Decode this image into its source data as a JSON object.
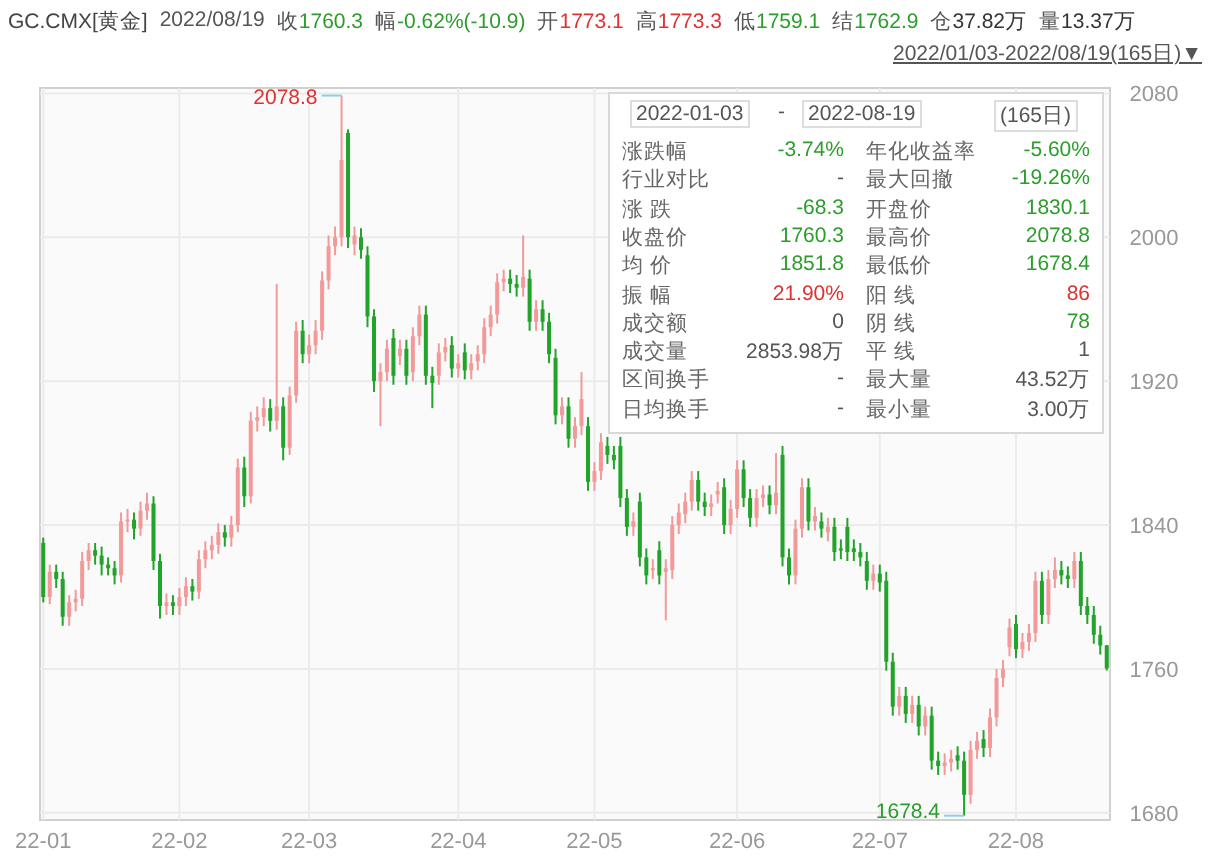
{
  "chart_data": {
    "type": "candlestick",
    "title": "GC.CMX[黄金]",
    "categories": [
      "22-01",
      null,
      null,
      null,
      null,
      null,
      null,
      null,
      null,
      null,
      null,
      null,
      null,
      null,
      null,
      null,
      null,
      null,
      null,
      null,
      null,
      "22-02",
      null,
      null,
      null,
      null,
      null,
      null,
      null,
      null,
      null,
      null,
      null,
      null,
      null,
      null,
      null,
      null,
      null,
      null,
      null,
      "22-03",
      null,
      null,
      null,
      null,
      null,
      null,
      null,
      null,
      null,
      null,
      null,
      null,
      null,
      null,
      null,
      null,
      null,
      null,
      null,
      null,
      null,
      null,
      "22-04",
      null,
      null,
      null,
      null,
      null,
      null,
      null,
      null,
      null,
      null,
      null,
      null,
      null,
      null,
      null,
      null,
      null,
      null,
      null,
      null,
      "22-05",
      null,
      null,
      null,
      null,
      null,
      null,
      null,
      null,
      null,
      null,
      null,
      null,
      null,
      null,
      null,
      null,
      null,
      null,
      null,
      null,
      null,
      "22-06",
      null,
      null,
      null,
      null,
      null,
      null,
      null,
      null,
      null,
      null,
      null,
      null,
      null,
      null,
      null,
      null,
      null,
      null,
      null,
      null,
      null,
      "22-07",
      null,
      null,
      null,
      null,
      null,
      null,
      null,
      null,
      null,
      null,
      null,
      null,
      null,
      null,
      null,
      null,
      null,
      null,
      null,
      null,
      "22-08",
      null,
      null,
      null,
      null,
      null,
      null,
      null,
      null,
      null,
      null,
      null,
      null,
      null,
      null
    ],
    "ohlc": [
      [
        1830.1,
        1833,
        1797,
        1800
      ],
      [
        1800,
        1818,
        1796,
        1814
      ],
      [
        1814,
        1818,
        1805,
        1810
      ],
      [
        1810,
        1814,
        1784,
        1789
      ],
      [
        1789,
        1801,
        1784,
        1797
      ],
      [
        1797,
        1804,
        1792,
        1799
      ],
      [
        1799,
        1825,
        1795,
        1820
      ],
      [
        1820,
        1830,
        1815,
        1826
      ],
      [
        1826,
        1830,
        1818,
        1823
      ],
      [
        1823,
        1828,
        1812,
        1818
      ],
      [
        1818,
        1822,
        1812,
        1816
      ],
      [
        1816,
        1820,
        1807,
        1812
      ],
      [
        1812,
        1847,
        1808,
        1842
      ],
      [
        1842,
        1849,
        1836,
        1843
      ],
      [
        1843,
        1847,
        1832,
        1838
      ],
      [
        1838,
        1853,
        1834,
        1848
      ],
      [
        1848,
        1858,
        1843,
        1852
      ],
      [
        1852,
        1856,
        1815,
        1820
      ],
      [
        1820,
        1824,
        1788,
        1795
      ],
      [
        1795,
        1802,
        1790,
        1797
      ],
      [
        1797,
        1801,
        1790,
        1795
      ],
      [
        1795,
        1805,
        1790,
        1800
      ],
      [
        1800,
        1811,
        1795,
        1806
      ],
      [
        1806,
        1810,
        1798,
        1803
      ],
      [
        1803,
        1826,
        1799,
        1821
      ],
      [
        1821,
        1831,
        1816,
        1826
      ],
      [
        1826,
        1834,
        1821,
        1829
      ],
      [
        1829,
        1841,
        1824,
        1836
      ],
      [
        1836,
        1840,
        1828,
        1833
      ],
      [
        1833,
        1845,
        1828,
        1840
      ],
      [
        1840,
        1877,
        1836,
        1872
      ],
      [
        1872,
        1878,
        1850,
        1856
      ],
      [
        1856,
        1903,
        1852,
        1898
      ],
      [
        1898,
        1906,
        1892,
        1900
      ],
      [
        1900,
        1911,
        1895,
        1905
      ],
      [
        1905,
        1910,
        1892,
        1898
      ],
      [
        1898,
        1974,
        1893,
        1906
      ],
      [
        1906,
        1911,
        1876,
        1883
      ],
      [
        1883,
        1917,
        1879,
        1912
      ],
      [
        1912,
        1953,
        1908,
        1948
      ],
      [
        1948,
        1954,
        1930,
        1935
      ],
      [
        1935,
        1946,
        1930,
        1940
      ],
      [
        1940,
        1954,
        1935,
        1948
      ],
      [
        1948,
        1981,
        1943,
        1976
      ],
      [
        1976,
        2001,
        1971,
        1995
      ],
      [
        1995,
        2006,
        1990,
        2000
      ],
      [
        2000,
        2078.8,
        1995,
        2043
      ],
      [
        2058,
        2060,
        1994,
        2000
      ],
      [
        1996,
        2006,
        1990,
        2001
      ],
      [
        2000,
        2005,
        1988,
        1993
      ],
      [
        1990,
        1995,
        1950,
        1956
      ],
      [
        1956,
        1960,
        1914,
        1920
      ],
      [
        1920,
        1930,
        1895,
        1925
      ],
      [
        1925,
        1943,
        1920,
        1938
      ],
      [
        1944,
        1949,
        1918,
        1923
      ],
      [
        1934,
        1943,
        1929,
        1938
      ],
      [
        1938,
        1943,
        1918,
        1923
      ],
      [
        1925,
        1950,
        1920,
        1945
      ],
      [
        1945,
        1962,
        1940,
        1957
      ],
      [
        1957,
        1962,
        1918,
        1923
      ],
      [
        1923,
        1928,
        1905,
        1919
      ],
      [
        1923,
        1941,
        1918,
        1936
      ],
      [
        1936,
        1944,
        1931,
        1939
      ],
      [
        1940,
        1945,
        1922,
        1927
      ],
      [
        1927,
        1935,
        1922,
        1930
      ],
      [
        1936,
        1941,
        1921,
        1926
      ],
      [
        1926,
        1935,
        1921,
        1930
      ],
      [
        1931,
        1940,
        1926,
        1935
      ],
      [
        1935,
        1955,
        1930,
        1950
      ],
      [
        1950,
        1962,
        1945,
        1957
      ],
      [
        1957,
        1980,
        1952,
        1975
      ],
      [
        1975,
        1982,
        1970,
        1977
      ],
      [
        1977,
        1982,
        1969,
        1974
      ],
      [
        1974,
        1979,
        1967,
        1972
      ],
      [
        1972,
        2001,
        1967,
        1978
      ],
      [
        1977,
        1982,
        1948,
        1953
      ],
      [
        1953,
        1965,
        1948,
        1960
      ],
      [
        1960,
        1965,
        1948,
        1953
      ],
      [
        1953,
        1958,
        1930,
        1935
      ],
      [
        1933,
        1938,
        1896,
        1901
      ],
      [
        1901,
        1911,
        1896,
        1906
      ],
      [
        1906,
        1911,
        1883,
        1888
      ],
      [
        1888,
        1900,
        1883,
        1895
      ],
      [
        1895,
        1925,
        1890,
        1910
      ],
      [
        1895,
        1900,
        1859,
        1864
      ],
      [
        1864,
        1875,
        1859,
        1870
      ],
      [
        1870,
        1891,
        1865,
        1886
      ],
      [
        1884,
        1889,
        1874,
        1879
      ],
      [
        1879,
        1884,
        1871,
        1876
      ],
      [
        1884,
        1889,
        1850,
        1855
      ],
      [
        1855,
        1860,
        1834,
        1839
      ],
      [
        1839,
        1847,
        1834,
        1842
      ],
      [
        1853,
        1858,
        1817,
        1822
      ],
      [
        1822,
        1827,
        1807,
        1812
      ],
      [
        1815,
        1821,
        1810,
        1816
      ],
      [
        1826,
        1831,
        1807,
        1812
      ],
      [
        1814,
        1821,
        1787,
        1816
      ],
      [
        1815,
        1845,
        1810,
        1840
      ],
      [
        1840,
        1852,
        1835,
        1847
      ],
      [
        1846,
        1858,
        1841,
        1853
      ],
      [
        1853,
        1870,
        1848,
        1865
      ],
      [
        1865,
        1870,
        1848,
        1853
      ],
      [
        1853,
        1858,
        1845,
        1850
      ],
      [
        1850,
        1857,
        1845,
        1852
      ],
      [
        1857,
        1864,
        1852,
        1859
      ],
      [
        1861,
        1866,
        1835,
        1840
      ],
      [
        1840,
        1854,
        1835,
        1849
      ],
      [
        1849,
        1876,
        1844,
        1871
      ],
      [
        1871,
        1876,
        1850,
        1855
      ],
      [
        1855,
        1860,
        1839,
        1844
      ],
      [
        1844,
        1860,
        1839,
        1855
      ],
      [
        1855,
        1862,
        1850,
        1857
      ],
      [
        1857,
        1862,
        1846,
        1851
      ],
      [
        1851,
        1880,
        1846,
        1858
      ],
      [
        1879,
        1884,
        1817,
        1822
      ],
      [
        1822,
        1827,
        1807,
        1812
      ],
      [
        1812,
        1843,
        1807,
        1838
      ],
      [
        1838,
        1866,
        1833,
        1861
      ],
      [
        1861,
        1866,
        1837,
        1842
      ],
      [
        1842,
        1850,
        1837,
        1845
      ],
      [
        1842,
        1847,
        1833,
        1838
      ],
      [
        1836,
        1844,
        1831,
        1839
      ],
      [
        1839,
        1844,
        1820,
        1825
      ],
      [
        1827,
        1832,
        1821,
        1826
      ],
      [
        1839,
        1844,
        1820,
        1825
      ],
      [
        1827,
        1832,
        1820,
        1825
      ],
      [
        1825,
        1830,
        1817,
        1822
      ],
      [
        1820,
        1825,
        1804,
        1809
      ],
      [
        1809,
        1818,
        1804,
        1813
      ],
      [
        1813,
        1818,
        1803,
        1808
      ],
      [
        1809,
        1814,
        1759,
        1764
      ],
      [
        1764,
        1769,
        1734,
        1739
      ],
      [
        1739,
        1750,
        1734,
        1745
      ],
      [
        1745,
        1750,
        1730,
        1735
      ],
      [
        1735,
        1745,
        1730,
        1740
      ],
      [
        1740,
        1745,
        1723,
        1728
      ],
      [
        1728,
        1739,
        1723,
        1734
      ],
      [
        1734,
        1739,
        1704,
        1709
      ],
      [
        1709,
        1714,
        1701,
        1706
      ],
      [
        1706,
        1713,
        1701,
        1708
      ],
      [
        1708,
        1715,
        1703,
        1710
      ],
      [
        1712,
        1717,
        1704,
        1709
      ],
      [
        1709,
        1714,
        1678.4,
        1690
      ],
      [
        1690,
        1720,
        1685,
        1715
      ],
      [
        1715,
        1725,
        1710,
        1720
      ],
      [
        1721,
        1726,
        1711,
        1716
      ],
      [
        1716,
        1738,
        1711,
        1733
      ],
      [
        1733,
        1760,
        1728,
        1755
      ],
      [
        1755,
        1765,
        1750,
        1760
      ],
      [
        1772,
        1788,
        1767,
        1783
      ],
      [
        1785,
        1790,
        1766,
        1771
      ],
      [
        1771,
        1780,
        1766,
        1775
      ],
      [
        1775,
        1785,
        1770,
        1780
      ],
      [
        1780,
        1814,
        1775,
        1809
      ],
      [
        1809,
        1814,
        1785,
        1790
      ],
      [
        1790,
        1815,
        1785,
        1810
      ],
      [
        1810,
        1822,
        1805,
        1815
      ],
      [
        1815,
        1820,
        1807,
        1812
      ],
      [
        1812,
        1817,
        1805,
        1810
      ],
      [
        1810,
        1825,
        1805,
        1820
      ],
      [
        1820,
        1825,
        1790,
        1795
      ],
      [
        1795,
        1800,
        1785,
        1790
      ],
      [
        1790,
        1795,
        1774,
        1779
      ],
      [
        1779,
        1784,
        1768,
        1773
      ],
      [
        1773.1,
        1773.3,
        1759.1,
        1760.3
      ]
    ],
    "ylim": [
      1676,
      2083
    ],
    "yticks": [
      1680,
      1760,
      1840,
      1920,
      2000,
      2080
    ],
    "grid": true,
    "annotations": [
      "2022/08/19",
      "收1760.3",
      "幅-0.62%(-10.9)",
      "开1773.1",
      "高1773.3",
      "低1759.1",
      "结1762.9",
      "仓37.82万",
      "量13.37万",
      "2022/01/03-2022/08/19(165日)▼",
      "2022-01-03",
      "-",
      "2022-08-19",
      "(165日)",
      "涨跌幅",
      "-3.74%",
      "年化收益率",
      "-5.60%",
      "行业对比",
      "-",
      "最大回撤",
      "-19.26%",
      "涨 跌",
      "-68.3",
      "开盘价",
      "1830.1",
      "收盘价",
      "1760.3",
      "最高价",
      "2078.8",
      "均 价",
      "1851.8",
      "最低价",
      "1678.4",
      "振 幅",
      "21.90%",
      "阳 线",
      "86",
      "成交额",
      "0",
      "阴 线",
      "78",
      "成交量",
      "2853.98万",
      "平 线",
      "1",
      "区间换手",
      "-",
      "最大量",
      "43.52万",
      "日均换手",
      "-",
      "最小量",
      "3.00万",
      "2078.8",
      "1678.4"
    ]
  }
}
